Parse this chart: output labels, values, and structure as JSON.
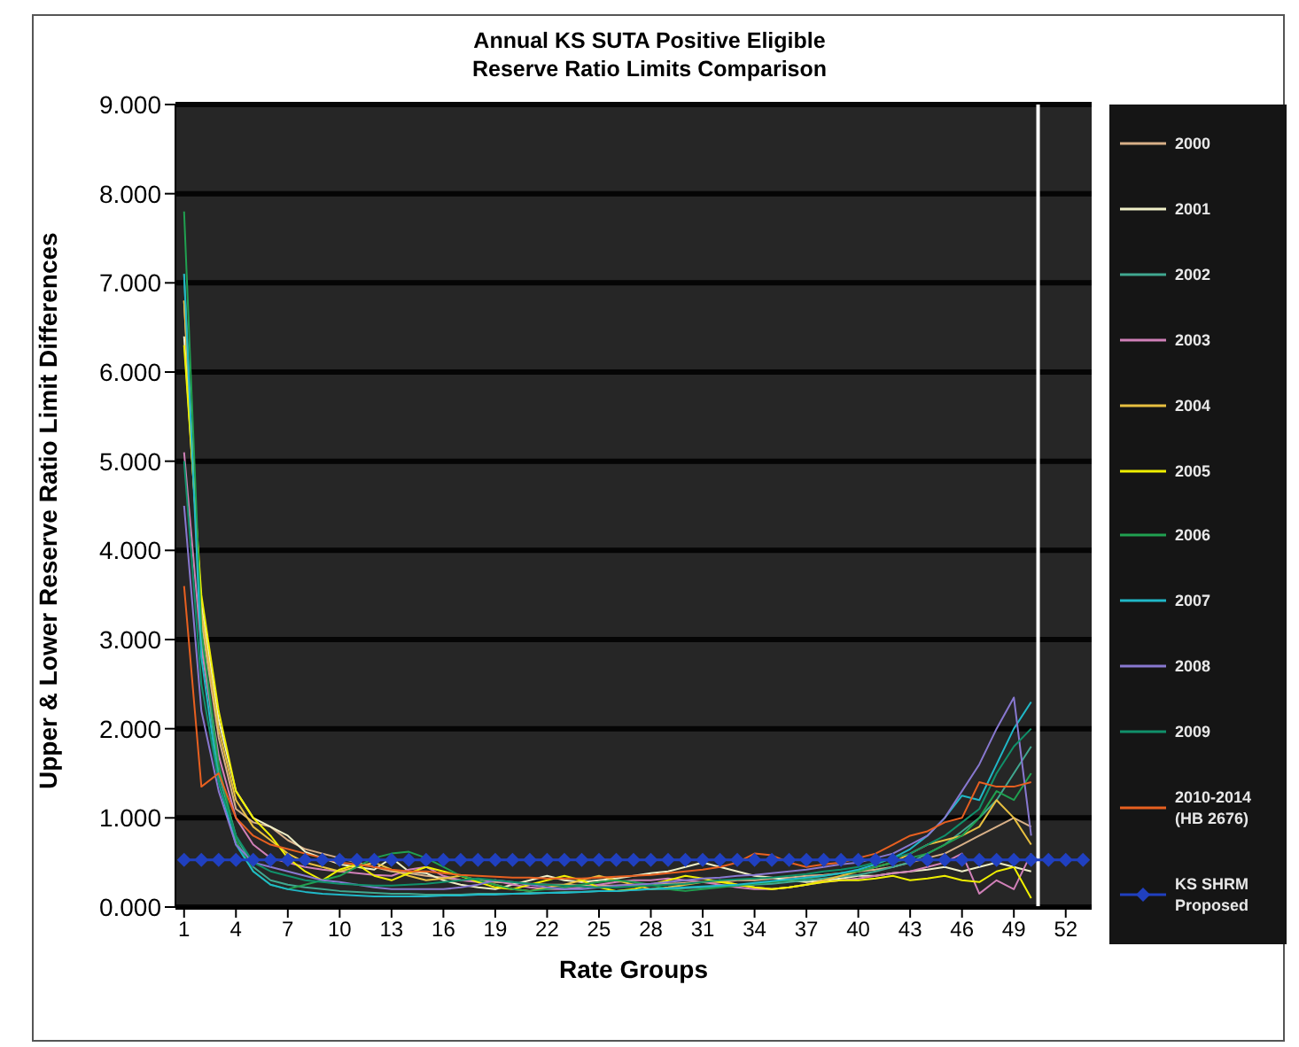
{
  "chart_data": {
    "type": "line",
    "title": "Annual KS SUTA Positive Eligible\nReserve Ratio Limits Comparison",
    "xlabel": "Rate Groups",
    "ylabel": "Upper & Lower Reserve Ratio Limit Differences",
    "x": [
      1,
      2,
      3,
      4,
      5,
      6,
      7,
      8,
      9,
      10,
      11,
      12,
      13,
      14,
      15,
      16,
      17,
      18,
      19,
      20,
      21,
      22,
      23,
      24,
      25,
      26,
      27,
      28,
      29,
      30,
      31,
      32,
      33,
      34,
      35,
      36,
      37,
      38,
      39,
      40,
      41,
      42,
      43,
      44,
      45,
      46,
      47,
      48,
      49,
      50,
      51,
      52,
      53
    ],
    "xlim": [
      0.5,
      53.5
    ],
    "xticks": [
      1,
      4,
      7,
      10,
      13,
      16,
      19,
      22,
      25,
      28,
      31,
      34,
      37,
      40,
      43,
      46,
      49,
      52
    ],
    "ylim": [
      0,
      9
    ],
    "yticks": [
      {
        "value": 0,
        "label": "0.000"
      },
      {
        "value": 1,
        "label": "1.000"
      },
      {
        "value": 2,
        "label": "2.000"
      },
      {
        "value": 3,
        "label": "3.000"
      },
      {
        "value": 4,
        "label": "4.000"
      },
      {
        "value": 5,
        "label": "5.000"
      },
      {
        "value": 6,
        "label": "6.000"
      },
      {
        "value": 7,
        "label": "7.000"
      },
      {
        "value": 8,
        "label": "8.000"
      },
      {
        "value": 9,
        "label": "9.000"
      }
    ],
    "grid": "y",
    "legend": "right",
    "marker": "none",
    "line_style": "solid",
    "ref_lines": [
      {
        "axis": "x",
        "value": 50.4,
        "color": "#ffffff"
      }
    ],
    "series": [
      {
        "name": "2000",
        "color": "#d8b088",
        "values": [
          6.8,
          3.2,
          1.9,
          1.1,
          0.95,
          0.9,
          0.75,
          0.65,
          0.6,
          0.55,
          0.5,
          0.45,
          0.4,
          0.38,
          0.35,
          0.33,
          0.3,
          0.3,
          0.28,
          0.27,
          0.26,
          0.25,
          0.25,
          0.24,
          0.24,
          0.24,
          0.25,
          0.25,
          0.26,
          0.27,
          0.28,
          0.28,
          0.3,
          0.3,
          0.32,
          0.33,
          0.35,
          0.36,
          0.38,
          0.4,
          0.42,
          0.45,
          0.5,
          0.55,
          0.6,
          0.7,
          0.8,
          0.9,
          1.0,
          0.9,
          null,
          null,
          null
        ]
      },
      {
        "name": "2001",
        "color": "#f0f0c8",
        "values": [
          6.4,
          3.4,
          2.1,
          1.3,
          1.0,
          0.9,
          0.8,
          0.62,
          0.55,
          0.48,
          0.45,
          0.42,
          0.55,
          0.4,
          0.38,
          0.3,
          0.25,
          0.22,
          0.2,
          0.25,
          0.3,
          0.35,
          0.3,
          0.28,
          0.3,
          0.32,
          0.35,
          0.38,
          0.4,
          0.45,
          0.5,
          0.45,
          0.4,
          0.35,
          0.33,
          0.3,
          0.28,
          0.3,
          0.32,
          0.35,
          0.35,
          0.38,
          0.4,
          0.42,
          0.45,
          0.4,
          0.45,
          0.5,
          0.45,
          0.4,
          null,
          null,
          null
        ]
      },
      {
        "name": "2002",
        "color": "#40a890",
        "values": [
          7.1,
          3.0,
          1.5,
          0.8,
          0.45,
          0.3,
          0.25,
          0.22,
          0.2,
          0.18,
          0.17,
          0.16,
          0.15,
          0.15,
          0.14,
          0.14,
          0.14,
          0.15,
          0.15,
          0.15,
          0.16,
          0.16,
          0.17,
          0.17,
          0.18,
          0.18,
          0.19,
          0.2,
          0.2,
          0.21,
          0.22,
          0.23,
          0.24,
          0.25,
          0.26,
          0.28,
          0.3,
          0.32,
          0.34,
          0.36,
          0.4,
          0.45,
          0.5,
          0.6,
          0.7,
          0.85,
          1.0,
          1.2,
          1.5,
          1.8,
          null,
          null,
          null
        ]
      },
      {
        "name": "2003",
        "color": "#d080b8",
        "values": [
          5.1,
          2.9,
          1.7,
          1.0,
          0.7,
          0.55,
          0.5,
          0.45,
          0.42,
          0.4,
          0.38,
          0.36,
          0.35,
          0.42,
          0.45,
          0.35,
          0.3,
          0.28,
          0.3,
          0.25,
          0.22,
          0.2,
          0.2,
          0.22,
          0.25,
          0.28,
          0.3,
          0.3,
          0.32,
          0.3,
          0.28,
          0.25,
          0.22,
          0.2,
          0.2,
          0.22,
          0.25,
          0.28,
          0.3,
          0.32,
          0.35,
          0.38,
          0.4,
          0.45,
          0.5,
          0.6,
          0.15,
          0.3,
          0.2,
          0.6,
          null,
          null,
          null
        ]
      },
      {
        "name": "2004",
        "color": "#e8c040",
        "values": [
          6.8,
          3.3,
          2.0,
          1.2,
          0.9,
          0.75,
          0.6,
          0.5,
          0.45,
          0.4,
          0.45,
          0.5,
          0.42,
          0.35,
          0.3,
          0.32,
          0.35,
          0.3,
          0.25,
          0.2,
          0.18,
          0.22,
          0.25,
          0.3,
          0.35,
          0.3,
          0.25,
          0.2,
          0.22,
          0.25,
          0.28,
          0.3,
          0.25,
          0.22,
          0.2,
          0.22,
          0.25,
          0.3,
          0.35,
          0.4,
          0.45,
          0.5,
          0.6,
          0.7,
          0.75,
          0.8,
          0.9,
          1.2,
          1.0,
          0.7,
          null,
          null,
          null
        ]
      },
      {
        "name": "2005",
        "color": "#f0f000",
        "values": [
          6.3,
          3.5,
          2.2,
          1.3,
          1.0,
          0.8,
          0.55,
          0.4,
          0.3,
          0.42,
          0.48,
          0.35,
          0.3,
          0.38,
          0.45,
          0.4,
          0.35,
          0.28,
          0.22,
          0.2,
          0.25,
          0.3,
          0.35,
          0.3,
          0.22,
          0.18,
          0.2,
          0.25,
          0.3,
          0.35,
          0.32,
          0.28,
          0.25,
          0.22,
          0.2,
          0.22,
          0.25,
          0.28,
          0.3,
          0.3,
          0.32,
          0.35,
          0.3,
          0.32,
          0.35,
          0.3,
          0.28,
          0.4,
          0.45,
          0.1,
          null,
          null,
          null
        ]
      },
      {
        "name": "2006",
        "color": "#20a050",
        "values": [
          7.8,
          3.1,
          1.6,
          0.75,
          0.4,
          0.25,
          0.2,
          0.25,
          0.3,
          0.35,
          0.45,
          0.55,
          0.6,
          0.62,
          0.55,
          0.45,
          0.35,
          0.3,
          0.25,
          0.2,
          0.18,
          0.2,
          0.22,
          0.25,
          0.28,
          0.3,
          0.28,
          0.25,
          0.2,
          0.18,
          0.2,
          0.22,
          0.24,
          0.26,
          0.28,
          0.3,
          0.32,
          0.35,
          0.38,
          0.4,
          0.45,
          0.5,
          0.55,
          0.6,
          0.7,
          0.8,
          1.0,
          1.3,
          1.2,
          1.5,
          null,
          null,
          null
        ]
      },
      {
        "name": "2007",
        "color": "#20b8c8",
        "values": [
          7.1,
          2.8,
          1.4,
          0.7,
          0.4,
          0.25,
          0.2,
          0.17,
          0.15,
          0.14,
          0.13,
          0.12,
          0.12,
          0.12,
          0.12,
          0.13,
          0.13,
          0.14,
          0.14,
          0.15,
          0.15,
          0.16,
          0.16,
          0.17,
          0.18,
          0.18,
          0.19,
          0.2,
          0.21,
          0.22,
          0.23,
          0.24,
          0.25,
          0.27,
          0.29,
          0.31,
          0.33,
          0.35,
          0.38,
          0.42,
          0.48,
          0.55,
          0.65,
          0.8,
          1.0,
          1.25,
          1.2,
          1.6,
          2.0,
          2.3,
          null,
          null,
          null
        ]
      },
      {
        "name": "2008",
        "color": "#8878d0",
        "values": [
          4.5,
          2.2,
          1.3,
          0.7,
          0.5,
          0.45,
          0.4,
          0.35,
          0.3,
          0.28,
          0.25,
          0.22,
          0.2,
          0.2,
          0.2,
          0.2,
          0.22,
          0.25,
          0.3,
          0.28,
          0.25,
          0.22,
          0.2,
          0.2,
          0.22,
          0.24,
          0.25,
          0.26,
          0.28,
          0.3,
          0.32,
          0.33,
          0.35,
          0.36,
          0.38,
          0.4,
          0.42,
          0.45,
          0.48,
          0.5,
          0.55,
          0.6,
          0.7,
          0.8,
          1.0,
          1.3,
          1.6,
          2.0,
          2.35,
          0.8,
          null,
          null,
          null
        ]
      },
      {
        "name": "2009",
        "color": "#10906a",
        "values": [
          5.0,
          2.5,
          1.4,
          0.8,
          0.5,
          0.4,
          0.35,
          0.3,
          0.28,
          0.26,
          0.25,
          0.24,
          0.24,
          0.25,
          0.26,
          0.28,
          0.3,
          0.32,
          0.3,
          0.28,
          0.26,
          0.25,
          0.24,
          0.23,
          0.22,
          0.22,
          0.23,
          0.24,
          0.25,
          0.26,
          0.28,
          0.3,
          0.31,
          0.32,
          0.33,
          0.35,
          0.37,
          0.4,
          0.42,
          0.45,
          0.5,
          0.55,
          0.6,
          0.7,
          0.8,
          0.95,
          1.1,
          1.5,
          1.8,
          2.0,
          null,
          null,
          null
        ]
      },
      {
        "name": "2010-2014\n(HB 2676)",
        "color": "#e86020",
        "values": [
          3.6,
          1.35,
          1.5,
          1.0,
          0.8,
          0.7,
          0.65,
          0.6,
          0.55,
          0.5,
          0.48,
          0.45,
          0.42,
          0.4,
          0.4,
          0.38,
          0.36,
          0.35,
          0.34,
          0.33,
          0.33,
          0.32,
          0.32,
          0.32,
          0.33,
          0.34,
          0.35,
          0.36,
          0.38,
          0.4,
          0.42,
          0.45,
          0.5,
          0.6,
          0.58,
          0.5,
          0.45,
          0.48,
          0.5,
          0.55,
          0.6,
          0.7,
          0.8,
          0.85,
          0.95,
          1.0,
          1.4,
          1.35,
          1.35,
          1.4,
          null,
          null,
          null
        ]
      },
      {
        "name": "KS SHRM\nProposed",
        "color": "#2040c0",
        "marker": "diamond",
        "values": [
          0.53,
          0.53,
          0.53,
          0.53,
          0.53,
          0.53,
          0.53,
          0.53,
          0.53,
          0.53,
          0.53,
          0.53,
          0.53,
          0.53,
          0.53,
          0.53,
          0.53,
          0.53,
          0.53,
          0.53,
          0.53,
          0.53,
          0.53,
          0.53,
          0.53,
          0.53,
          0.53,
          0.53,
          0.53,
          0.53,
          0.53,
          0.53,
          0.53,
          0.53,
          0.53,
          0.53,
          0.53,
          0.53,
          0.53,
          0.53,
          0.53,
          0.53,
          0.53,
          0.53,
          0.53,
          0.53,
          0.53,
          0.53,
          0.53,
          0.53,
          0.53,
          0.53,
          0.53
        ]
      }
    ]
  }
}
